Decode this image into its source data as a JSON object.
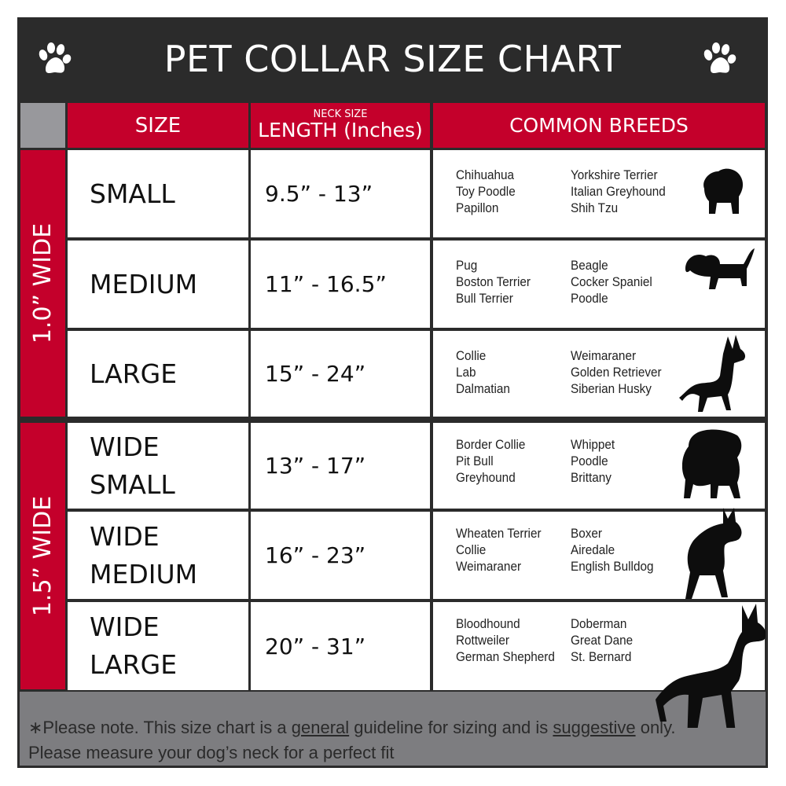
{
  "title": "PET COLLAR SIZE CHART",
  "header": {
    "size": "SIZE",
    "neck_size": "NECK SIZE",
    "length": "LENGTH (Inches)",
    "breeds": "COMMON BREEDS"
  },
  "groups": [
    {
      "label": "1.0” WIDE"
    },
    {
      "label": "1.5” WIDE"
    }
  ],
  "rows": [
    {
      "size": [
        "SMALL"
      ],
      "length": "9.5” - 13”",
      "breeds_a": [
        "Chihuahua",
        "Toy Poodle",
        "Papillon"
      ],
      "breeds_b": [
        "Yorkshire Terrier",
        "Italian Greyhound",
        "Shih Tzu"
      ],
      "icon": "small-dog-silhouette-icon"
    },
    {
      "size": [
        "MEDIUM"
      ],
      "length": "11” - 16.5”",
      "breeds_a": [
        "Pug",
        "Boston Terrier",
        "Bull Terrier"
      ],
      "breeds_b": [
        "Beagle",
        "Cocker Spaniel",
        "Poodle"
      ],
      "icon": "medium-dog-silhouette-icon"
    },
    {
      "size": [
        "LARGE"
      ],
      "length": "15” - 24”",
      "breeds_a": [
        "Collie",
        "Lab",
        "Dalmatian"
      ],
      "breeds_b": [
        "Weimaraner",
        "Golden Retriever",
        "Siberian Husky"
      ],
      "icon": "large-dog-silhouette-icon"
    },
    {
      "size": [
        "WIDE",
        "SMALL"
      ],
      "length": "13” - 17”",
      "breeds_a": [
        "Border Collie",
        "Pit Bull",
        "Greyhound"
      ],
      "breeds_b": [
        "Whippet",
        "Poodle",
        "Brittany"
      ],
      "icon": "bulldog-silhouette-icon"
    },
    {
      "size": [
        "WIDE",
        "MEDIUM"
      ],
      "length": "16” - 23”",
      "breeds_a": [
        "Wheaten Terrier",
        "Collie",
        "Weimaraner"
      ],
      "breeds_b": [
        "Boxer",
        "Airedale",
        "English Bulldog"
      ],
      "icon": "pitbull-silhouette-icon"
    },
    {
      "size": [
        "WIDE",
        "LARGE"
      ],
      "length": "20” - 31”",
      "breeds_a": [
        "Bloodhound",
        "Rottweiler",
        "German Shepherd"
      ],
      "breeds_b": [
        "Doberman",
        "Great Dane",
        "St. Bernard"
      ],
      "icon": "doberman-silhouette-icon"
    }
  ],
  "footer": {
    "part1": "∗Please note. This size chart is a ",
    "general": "general",
    "part2": " guideline for sizing and is ",
    "suggestive": "suggestive",
    "part3": " only.",
    "line2": "Please measure your dog’s neck for a perfect fit"
  },
  "colors": {
    "red": "#c4002b",
    "dark": "#2b2b2b",
    "gray": "#7d7d80"
  }
}
